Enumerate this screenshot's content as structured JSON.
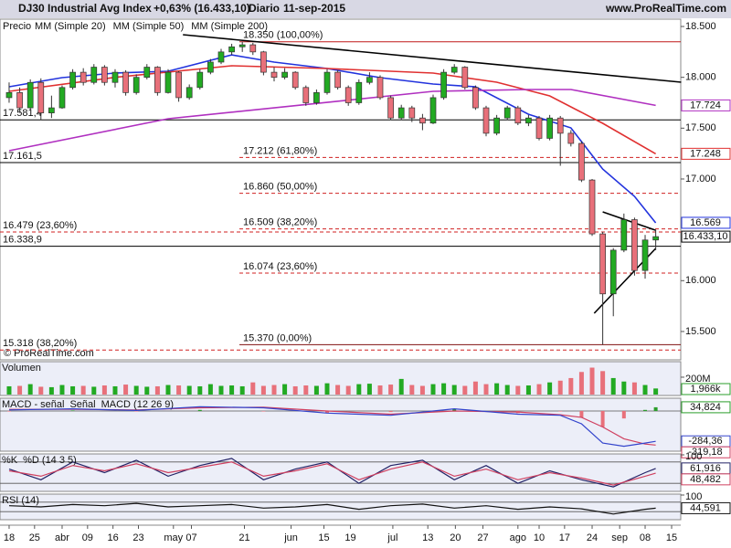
{
  "chart_data": {
    "type": "candlestick",
    "title": "DJ30 Industrial Avg Index",
    "change": "+0,63% (16.433,10)",
    "period": "Diario",
    "date": "11-sep-2015",
    "source": "www.ProRealTime.com",
    "copyright": "© ProRealTime.com",
    "price_label": "Precio",
    "up_color": "#22aa22",
    "down_color": "#e8707a",
    "xlim": [
      -0.86,
      63.36
    ],
    "xticks": [
      {
        "value": 0,
        "label": "18"
      },
      {
        "value": 2.4,
        "label": "25"
      },
      {
        "value": 5,
        "label": "abr"
      },
      {
        "value": 7.4,
        "label": "09"
      },
      {
        "value": 9.8,
        "label": "16"
      },
      {
        "value": 12.2,
        "label": "23"
      },
      {
        "value": 15.5,
        "label": "may"
      },
      {
        "value": 17.2,
        "label": "07"
      },
      {
        "value": 22.2,
        "label": "21"
      },
      {
        "value": 26.6,
        "label": "jun"
      },
      {
        "value": 29.7,
        "label": "15"
      },
      {
        "value": 32.2,
        "label": "19"
      },
      {
        "value": 36.2,
        "label": "jul"
      },
      {
        "value": 39.5,
        "label": "13"
      },
      {
        "value": 42.1,
        "label": "20"
      },
      {
        "value": 44.7,
        "label": "27"
      },
      {
        "value": 48,
        "label": "ago"
      },
      {
        "value": 50,
        "label": "10"
      },
      {
        "value": 52.4,
        "label": "17"
      },
      {
        "value": 55,
        "label": "24"
      },
      {
        "value": 57.6,
        "label": "sep"
      },
      {
        "value": 60,
        "label": "08"
      },
      {
        "value": 62.5,
        "label": "15"
      }
    ],
    "ylim": [
      15230,
      18563
    ],
    "yticks": [
      {
        "value": 18500,
        "label": "18.500"
      },
      {
        "value": 18000,
        "label": "18.000"
      },
      {
        "value": 17500,
        "label": "17.500"
      },
      {
        "value": 17000,
        "label": "17.000"
      },
      {
        "value": 16000,
        "label": "16.000"
      },
      {
        "value": 15500,
        "label": "15.500"
      }
    ],
    "candles": [
      [
        17800,
        17950,
        17750,
        17850
      ],
      [
        17850,
        17900,
        17650,
        17700
      ],
      [
        17700,
        17980,
        17680,
        17950
      ],
      [
        17950,
        17990,
        17581,
        17650
      ],
      [
        17650,
        17820,
        17600,
        17700
      ],
      [
        17700,
        17920,
        17690,
        17900
      ],
      [
        17900,
        18080,
        17880,
        18050
      ],
      [
        18050,
        18090,
        17920,
        17950
      ],
      [
        17950,
        18130,
        17930,
        18100
      ],
      [
        18100,
        18120,
        17920,
        17950
      ],
      [
        17950,
        18080,
        17900,
        18050
      ],
      [
        18050,
        18070,
        17820,
        17850
      ],
      [
        17850,
        18030,
        17830,
        18000
      ],
      [
        18000,
        18130,
        17980,
        18100
      ],
      [
        18100,
        18110,
        17820,
        17850
      ],
      [
        17850,
        18080,
        17840,
        18050
      ],
      [
        18050,
        18060,
        17760,
        17800
      ],
      [
        17800,
        17930,
        17780,
        17900
      ],
      [
        17900,
        18080,
        17880,
        18050
      ],
      [
        18050,
        18180,
        18030,
        18150
      ],
      [
        18150,
        18280,
        18130,
        18250
      ],
      [
        18250,
        18330,
        18220,
        18300
      ],
      [
        18300,
        18350,
        18250,
        18320
      ],
      [
        18320,
        18340,
        18220,
        18250
      ],
      [
        18250,
        18260,
        18020,
        18050
      ],
      [
        18050,
        18100,
        17960,
        18000
      ],
      [
        18000,
        18090,
        17980,
        18050
      ],
      [
        18050,
        18060,
        17880,
        17900
      ],
      [
        17900,
        17920,
        17720,
        17750
      ],
      [
        17750,
        17880,
        17730,
        17850
      ],
      [
        17850,
        18080,
        17830,
        18050
      ],
      [
        18050,
        18070,
        17880,
        17900
      ],
      [
        17900,
        17920,
        17720,
        17750
      ],
      [
        17750,
        17980,
        17730,
        17950
      ],
      [
        17950,
        18050,
        17930,
        18000
      ],
      [
        18000,
        18020,
        17780,
        17800
      ],
      [
        17800,
        17820,
        17580,
        17600
      ],
      [
        17600,
        17730,
        17580,
        17700
      ],
      [
        17700,
        17720,
        17560,
        17600
      ],
      [
        17600,
        17640,
        17480,
        17550
      ],
      [
        17550,
        17830,
        17540,
        17800
      ],
      [
        17800,
        18080,
        17780,
        18050
      ],
      [
        18050,
        18130,
        18030,
        18100
      ],
      [
        18100,
        18110,
        17880,
        17900
      ],
      [
        17900,
        17920,
        17680,
        17700
      ],
      [
        17700,
        17720,
        17420,
        17450
      ],
      [
        17450,
        17630,
        17430,
        17600
      ],
      [
        17600,
        17720,
        17580,
        17700
      ],
      [
        17700,
        17720,
        17530,
        17550
      ],
      [
        17550,
        17630,
        17520,
        17600
      ],
      [
        17600,
        17620,
        17380,
        17400
      ],
      [
        17400,
        17630,
        17380,
        17600
      ],
      [
        17600,
        17620,
        17130,
        17450
      ],
      [
        17450,
        17480,
        17320,
        17350
      ],
      [
        17350,
        17370,
        16970,
        16990
      ],
      [
        16990,
        17000,
        16440,
        16460
      ],
      [
        16460,
        16480,
        15370,
        15870
      ],
      [
        15870,
        16320,
        15650,
        16300
      ],
      [
        16300,
        16660,
        16280,
        16600
      ],
      [
        16600,
        16620,
        16050,
        16100
      ],
      [
        16100,
        16450,
        16020,
        16400
      ],
      [
        16400,
        16500,
        16300,
        16433.1
      ]
    ],
    "series": [
      {
        "name": "MM (Simple 20)",
        "color": "#2233dd",
        "x": [
          0,
          5,
          10,
          15,
          21,
          25,
          30,
          35,
          40,
          44,
          49,
          53,
          56,
          59,
          61
        ],
        "values": [
          17907,
          17997,
          18042,
          18060,
          18221,
          18150,
          18087,
          17997,
          17934,
          17907,
          17637,
          17503,
          17098,
          16829,
          16569
        ]
      },
      {
        "name": "MM (Simple 50)",
        "color": "#e03030",
        "x": [
          0,
          10,
          21,
          30,
          40,
          46,
          51,
          56,
          61
        ],
        "values": [
          17862,
          18000,
          18114,
          18087,
          18042,
          17952,
          17817,
          17548,
          17248
        ]
      },
      {
        "name": "MM (Simple 200)",
        "color": "#b030c0",
        "x": [
          0,
          15,
          30,
          40,
          49,
          53,
          61
        ],
        "values": [
          17278,
          17593,
          17754,
          17862,
          17880,
          17880,
          17724
        ]
      }
    ],
    "lines": [
      {
        "color": "#000000",
        "x": [
          16.4,
          63.4
        ],
        "values": [
          18419,
          17952
        ]
      },
      {
        "color": "#000000",
        "x": [
          56,
          61
        ],
        "values": [
          16676,
          16496
        ]
      },
      {
        "color": "#000000",
        "x": [
          55.2,
          61
        ],
        "values": [
          15679,
          16317
        ]
      }
    ],
    "levels": [
      {
        "value": 17581.4,
        "label": "17.581,4",
        "color": "#000000",
        "dashed": false
      },
      {
        "value": 17161.5,
        "label": "17.161,5",
        "color": "#000000",
        "dashed": false
      },
      {
        "value": 16479,
        "label": "16.479 (23,60%)",
        "color": "#d02020",
        "dashed": true
      },
      {
        "value": 16338.9,
        "label": "16.338,9",
        "color": "#000000",
        "dashed": false
      },
      {
        "value": 15318,
        "label": "15.318 (38,20%)",
        "color": "#d02020",
        "dashed": true
      }
    ],
    "fibonacci": [
      {
        "value": 18350,
        "label": "18.350 (100,00%)",
        "color": "#c01818",
        "dashed": false
      },
      {
        "value": 17212,
        "label": "17.212 (61,80%)",
        "color": "#d02020",
        "dashed": true
      },
      {
        "value": 16860,
        "label": "16.860 (50,00%)",
        "color": "#d02020",
        "dashed": true
      },
      {
        "value": 16509,
        "label": "16.509 (38,20%)",
        "color": "#d02020",
        "dashed": true
      },
      {
        "value": 16074,
        "label": "16.074 (23,60%)",
        "color": "#d02020",
        "dashed": true
      },
      {
        "value": 15370,
        "label": "15.370 (0,00%)",
        "color": "#801010",
        "dashed": false
      }
    ],
    "tags": [
      {
        "value": 17724,
        "label": "17.724",
        "color": "#b030c0"
      },
      {
        "value": 17248,
        "label": "17.248",
        "color": "#e03030"
      },
      {
        "value": 16569,
        "label": "16.569",
        "color": "#2233dd"
      },
      {
        "value": 16433.1,
        "label": "16.433,10",
        "color": "#000000"
      }
    ],
    "panels": [
      {
        "type": "bar",
        "title": "Volumen",
        "color": "#2a9d2a",
        "ylim": [
          0,
          368
        ],
        "yticks": [
          {
            "value": 200,
            "label": "200M"
          }
        ],
        "values": [
          95,
          100,
          120,
          90,
          85,
          110,
          95,
          100,
          90,
          105,
          95,
          115,
          100,
          90,
          95,
          110,
          105,
          100,
          95,
          120,
          100,
          105,
          95,
          140,
          100,
          110,
          120,
          95,
          105,
          100,
          130,
          110,
          100,
          120,
          125,
          105,
          115,
          180,
          110,
          100,
          120,
          130,
          110,
          100,
          150,
          120,
          130,
          110,
          100,
          105,
          120,
          140,
          160,
          190,
          260,
          310,
          270,
          190,
          150,
          140,
          110,
          70
        ],
        "tags": [
          {
            "label": "1,966k",
            "color": "#2a9d2a"
          }
        ]
      },
      {
        "type": "line",
        "ylim": [
          -368,
          111
        ],
        "hlines": [
          0
        ],
        "histogram": {
          "name": "MACD - señal",
          "color": "#2a9d2a",
          "x": [
            0,
            6,
            12,
            18,
            24,
            30,
            36,
            42,
            48,
            52,
            54,
            56,
            58,
            60,
            61
          ],
          "values": [
            -5,
            5,
            -5,
            10,
            -5,
            -20,
            -10,
            20,
            -20,
            -5,
            -60,
            -150,
            -70,
            10,
            34.824
          ]
        },
        "series": [
          {
            "name": "Señal",
            "color": "#d04060",
            "x": [
              0,
              6,
              12,
              18,
              24,
              30,
              36,
              42,
              48,
              52,
              54,
              56,
              58,
              60,
              61
            ],
            "values": [
              15,
              15,
              10,
              30,
              35,
              0,
              -30,
              0,
              -10,
              -35,
              -60,
              -150,
              -260,
              -310,
              -319.18
            ]
          },
          {
            "name": "MACD (12 26 9)",
            "color": "#3344cc",
            "x": [
              0,
              6,
              12,
              18,
              24,
              30,
              36,
              42,
              48,
              52,
              54,
              56,
              58,
              60,
              61
            ],
            "values": [
              10,
              20,
              5,
              40,
              30,
              -20,
              -40,
              20,
              -30,
              -40,
              -120,
              -300,
              -330,
              -300,
              -284.36
            ]
          }
        ],
        "tags": [
          {
            "value": 34.824,
            "label": "34,824",
            "color": "#2a9d2a"
          },
          {
            "value": -284.36,
            "label": "-284,36",
            "color": "#3344cc"
          },
          {
            "value": -319.18,
            "label": "-319,18",
            "color": "#d04060"
          }
        ]
      },
      {
        "type": "line",
        "ylim": [
          0,
          100
        ],
        "yticks": [
          100
        ],
        "hlines": [
          80,
          20
        ],
        "series": [
          {
            "name": "%K",
            "color": "#222266",
            "x": [
              0,
              3,
              6,
              9,
              12,
              15,
              18,
              21,
              24,
              27,
              30,
              33,
              36,
              39,
              42,
              45,
              48,
              51,
              54,
              57,
              60,
              61
            ],
            "values": [
              60,
              30,
              80,
              50,
              85,
              40,
              70,
              90,
              30,
              60,
              80,
              20,
              70,
              85,
              30,
              70,
              20,
              55,
              30,
              10,
              50,
              61.916
            ]
          },
          {
            "name": "%D (14 3 5)",
            "color": "#d04060",
            "x": [
              0,
              3,
              6,
              9,
              12,
              15,
              18,
              21,
              24,
              27,
              30,
              33,
              36,
              39,
              42,
              45,
              48,
              51,
              54,
              57,
              60,
              61
            ],
            "values": [
              55,
              40,
              70,
              55,
              75,
              50,
              65,
              80,
              40,
              55,
              75,
              30,
              60,
              80,
              40,
              60,
              30,
              50,
              35,
              15,
              40,
              48.482
            ]
          }
        ],
        "tags": [
          {
            "value": 61.916,
            "label": "61,916",
            "color": "#222266"
          },
          {
            "value": 48.482,
            "label": "48,482",
            "color": "#d04060"
          }
        ]
      },
      {
        "type": "line",
        "ylim": [
          0,
          100
        ],
        "yticks": [
          100
        ],
        "hlines": [
          70,
          30
        ],
        "series": [
          {
            "name": "RSI (14)",
            "color": "#111111",
            "x": [
              0,
              3,
              6,
              9,
              12,
              15,
              18,
              21,
              24,
              27,
              30,
              33,
              36,
              39,
              42,
              45,
              48,
              51,
              54,
              57,
              60,
              61
            ],
            "values": [
              55,
              50,
              60,
              55,
              65,
              50,
              55,
              60,
              45,
              50,
              60,
              40,
              55,
              62,
              45,
              55,
              40,
              50,
              42,
              20,
              40,
              44.591
            ]
          }
        ],
        "tags": [
          {
            "value": 44.591,
            "label": "44,591",
            "color": "#111111"
          }
        ]
      }
    ]
  }
}
